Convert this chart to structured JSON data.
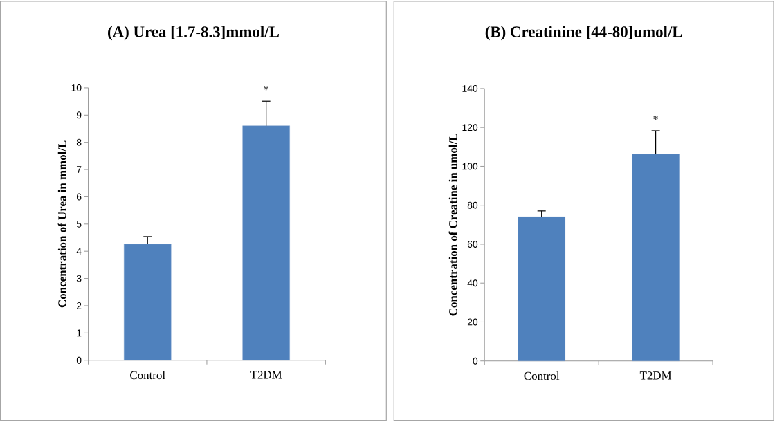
{
  "chart_data": [
    {
      "type": "bar",
      "title": "(A) Urea [1.7-8.3]mmol/L",
      "ylabel": "Concentration of Urea in mmol/L",
      "categories": [
        "Control",
        "T2DM"
      ],
      "values": [
        4.26,
        8.61
      ],
      "errors": [
        0.28,
        0.9
      ],
      "color": "#4f81bd",
      "ylim": [
        0,
        10
      ],
      "yticks": [
        0,
        1,
        2,
        3,
        4,
        5,
        6,
        7,
        8,
        9,
        10
      ],
      "annotations": [
        "*"
      ]
    },
    {
      "type": "bar",
      "title": "(B) Creatinine [44-80]umol/L",
      "ylabel": "Concentration of Creatine in umol/L",
      "categories": [
        "Control",
        "T2DM"
      ],
      "values": [
        74.1,
        106.3
      ],
      "errors": [
        3,
        12
      ],
      "color": "#4f81bd",
      "ylim": [
        0,
        140
      ],
      "yticks": [
        0,
        20,
        40,
        60,
        80,
        100,
        120,
        140
      ],
      "annotations": [
        "*"
      ]
    }
  ]
}
